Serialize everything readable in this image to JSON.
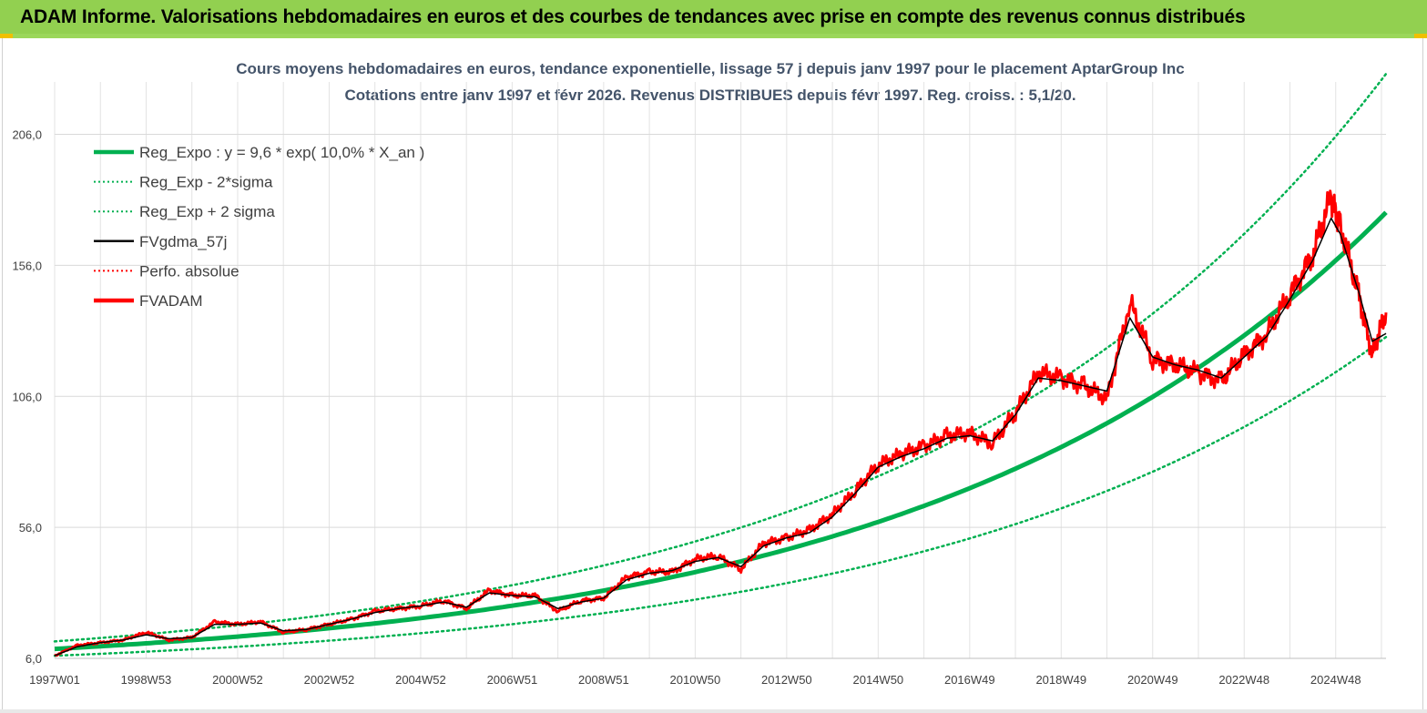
{
  "header": {
    "title": "ADAM Informe. Valorisations hebdomadaires en euros et des courbes de tendances avec prise en compte des revenus connus distribués"
  },
  "chart_data": {
    "type": "line",
    "title": "Cours moyens hebdomadaires en euros, tendance exponentielle, lissage 57 j depuis janv 1997 pour le placement AptarGroup Inc",
    "subtitle": "Cotations entre janv 1997 et févr 2026. Revenus DISTRIBUES depuis févr 1997. Reg. croiss. : 5,1/20.",
    "xlabel": "",
    "ylabel": "",
    "x_start_year": 1997.0,
    "x_end_year": 2026.1,
    "ylim": [
      6,
      226
    ],
    "y_ticks": [
      "206,0",
      "156,0",
      "106,0",
      "56,0",
      "6,0"
    ],
    "y_tick_values": [
      206,
      156,
      106,
      56,
      6
    ],
    "x_tick_labels": [
      "1997W01",
      "1998W53",
      "2000W52",
      "2002W52",
      "2004W52",
      "2006W51",
      "2008W51",
      "2010W50",
      "2012W50",
      "2014W50",
      "2016W49",
      "2018W49",
      "2020W49",
      "2022W48",
      "2024W48"
    ],
    "x_tick_years": [
      1997.0,
      1999.0,
      2001.0,
      2003.0,
      2005.0,
      2007.0,
      2009.0,
      2011.0,
      2013.0,
      2015.0,
      2017.0,
      2019.0,
      2021.0,
      2023.0,
      2025.0
    ],
    "regression": {
      "a": 9.6,
      "rate": 0.1,
      "sigma_factor_low": 0.73,
      "sigma_factor_high": 1.3
    },
    "legend": [
      {
        "label": "Reg_Expo : y = 9,6 * exp( 10,0% *  X_an )",
        "color": "#00b050",
        "style": "thick"
      },
      {
        "label": "Reg_Exp - 2*sigma",
        "color": "#00b050",
        "style": "dotted"
      },
      {
        "label": "Reg_Exp + 2 sigma",
        "color": "#00b050",
        "style": "dotted"
      },
      {
        "label": "FVgdma_57j",
        "color": "#000000",
        "style": "solid"
      },
      {
        "label": "Perfo. absolue",
        "color": "#ff0000",
        "style": "dotted"
      },
      {
        "label": "FVADAM",
        "color": "#ff0000",
        "style": "thick"
      }
    ],
    "legend_position": "top-left",
    "series": [
      {
        "name": "FVADAM",
        "x": [
          1997.0,
          1997.5,
          1998.0,
          1998.5,
          1999.0,
          1999.5,
          2000.0,
          2000.5,
          2001.0,
          2001.5,
          2002.0,
          2002.5,
          2003.0,
          2003.5,
          2004.0,
          2004.5,
          2005.0,
          2005.5,
          2006.0,
          2006.5,
          2007.0,
          2007.5,
          2008.0,
          2008.5,
          2009.0,
          2009.5,
          2010.0,
          2010.5,
          2011.0,
          2011.5,
          2012.0,
          2012.5,
          2013.0,
          2013.5,
          2014.0,
          2014.5,
          2015.0,
          2015.5,
          2016.0,
          2016.5,
          2017.0,
          2017.5,
          2018.0,
          2018.5,
          2019.0,
          2019.5,
          2020.0,
          2020.5,
          2021.0,
          2021.5,
          2022.0,
          2022.5,
          2023.0,
          2023.5,
          2024.0,
          2024.5,
          2024.9,
          2025.1,
          2025.5,
          2025.8,
          2026.1
        ],
        "values": [
          7,
          11,
          12,
          13,
          16,
          13,
          14,
          20,
          19,
          20,
          16,
          17,
          19,
          21,
          24,
          25,
          26,
          28,
          25,
          32,
          30,
          30,
          24,
          28,
          29,
          37,
          39,
          39,
          44,
          45,
          40,
          50,
          52,
          55,
          61,
          70,
          80,
          84,
          87,
          91,
          92,
          88,
          100,
          115,
          113,
          110,
          105,
          142,
          120,
          118,
          115,
          112,
          122,
          130,
          145,
          160,
          182,
          171,
          145,
          122,
          138
        ]
      },
      {
        "name": "FVgdma_57j",
        "x": [
          1997.0,
          1997.5,
          1998.0,
          1998.5,
          1999.0,
          1999.5,
          2000.0,
          2000.5,
          2001.0,
          2001.5,
          2002.0,
          2002.5,
          2003.0,
          2003.5,
          2004.0,
          2004.5,
          2005.0,
          2005.5,
          2006.0,
          2006.5,
          2007.0,
          2007.5,
          2008.0,
          2008.5,
          2009.0,
          2009.5,
          2010.0,
          2010.5,
          2011.0,
          2011.5,
          2012.0,
          2012.5,
          2013.0,
          2013.5,
          2014.0,
          2014.5,
          2015.0,
          2015.5,
          2016.0,
          2016.5,
          2017.0,
          2017.5,
          2018.0,
          2018.5,
          2019.0,
          2019.5,
          2020.0,
          2020.5,
          2021.0,
          2021.5,
          2022.0,
          2022.5,
          2023.0,
          2023.5,
          2024.0,
          2024.5,
          2024.9,
          2025.1,
          2025.5,
          2025.8,
          2026.1
        ],
        "values": [
          7,
          10.5,
          12,
          13,
          15,
          13.5,
          14,
          19,
          19,
          19.5,
          16.5,
          17,
          19,
          21,
          23.5,
          25,
          26,
          27.5,
          25.5,
          31,
          30,
          29.5,
          25,
          27.5,
          29,
          36,
          38.5,
          39.5,
          43,
          44.5,
          41,
          49,
          52,
          54,
          60,
          69,
          79,
          83,
          86,
          90,
          91,
          89,
          99,
          113,
          112,
          110,
          108,
          136,
          121,
          118,
          116,
          113,
          121,
          129,
          143,
          158,
          174,
          168,
          146,
          127,
          130
        ]
      }
    ]
  }
}
